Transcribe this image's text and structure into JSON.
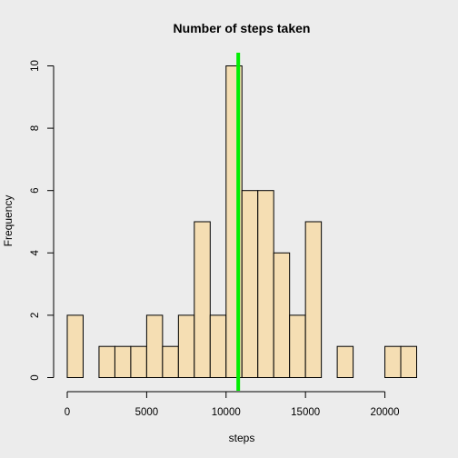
{
  "chart_data": {
    "type": "bar",
    "title": "Number of steps taken",
    "xlabel": "steps",
    "ylabel": "Frequency",
    "bin_width": 1000,
    "bins": [
      {
        "start": 0,
        "end": 1000,
        "count": 2
      },
      {
        "start": 1000,
        "end": 2000,
        "count": 0
      },
      {
        "start": 2000,
        "end": 3000,
        "count": 1
      },
      {
        "start": 3000,
        "end": 4000,
        "count": 1
      },
      {
        "start": 4000,
        "end": 5000,
        "count": 1
      },
      {
        "start": 5000,
        "end": 6000,
        "count": 2
      },
      {
        "start": 6000,
        "end": 7000,
        "count": 1
      },
      {
        "start": 7000,
        "end": 8000,
        "count": 2
      },
      {
        "start": 8000,
        "end": 9000,
        "count": 5
      },
      {
        "start": 9000,
        "end": 10000,
        "count": 2
      },
      {
        "start": 10000,
        "end": 11000,
        "count": 10
      },
      {
        "start": 11000,
        "end": 12000,
        "count": 6
      },
      {
        "start": 12000,
        "end": 13000,
        "count": 6
      },
      {
        "start": 13000,
        "end": 14000,
        "count": 4
      },
      {
        "start": 14000,
        "end": 15000,
        "count": 2
      },
      {
        "start": 15000,
        "end": 16000,
        "count": 5
      },
      {
        "start": 16000,
        "end": 17000,
        "count": 0
      },
      {
        "start": 17000,
        "end": 18000,
        "count": 1
      },
      {
        "start": 18000,
        "end": 19000,
        "count": 0
      },
      {
        "start": 19000,
        "end": 20000,
        "count": 0
      },
      {
        "start": 20000,
        "end": 21000,
        "count": 1
      },
      {
        "start": 21000,
        "end": 22000,
        "count": 1
      }
    ],
    "xlim": [
      0,
      22000
    ],
    "ylim": [
      0,
      10
    ],
    "x_ticks": [
      0,
      5000,
      10000,
      15000,
      20000
    ],
    "y_ticks": [
      0,
      2,
      4,
      6,
      8,
      10
    ],
    "vline": {
      "x": 10766,
      "color": "#00ee00"
    },
    "bar_color": "#f5deb3",
    "bar_edge_color": "#000000",
    "background": "#ececec",
    "grid": false
  }
}
